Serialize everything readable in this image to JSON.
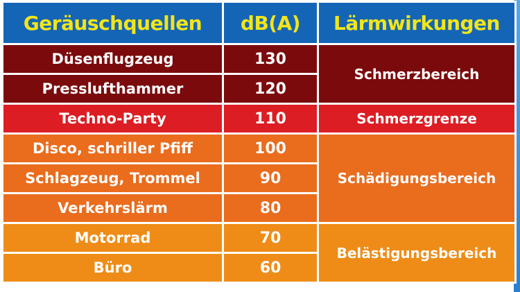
{
  "table": {
    "headers": [
      "Geräuschquellen",
      "dB(A)",
      "Lärmwirkungen"
    ],
    "rows": [
      {
        "source": "Düsenflugzeug",
        "db": "130"
      },
      {
        "source": "Presslufthammer",
        "db": "120"
      },
      {
        "source": "Techno-Party",
        "db": "110"
      },
      {
        "source": "Disco, schriller Pfiff",
        "db": "100"
      },
      {
        "source": "Schlagzeug, Trommel",
        "db": "90"
      },
      {
        "source": "Verkehrslärm",
        "db": "80"
      },
      {
        "source": "Motorrad",
        "db": "70"
      },
      {
        "source": "Büro",
        "db": "60"
      }
    ],
    "effects": [
      "Schmerzbereich",
      "Schmerzgrenze",
      "Schädigungsbereich",
      "Belästigungsbereich"
    ]
  },
  "colors": {
    "header": "#1565b6",
    "header_text": "#f2e51a",
    "schmerzbereich": "#7b0a0c",
    "schmerzgrenze": "#dc1d23",
    "schaedigungsbereich": "#ea6c1d",
    "belaestigungsbereich": "#ef8c17"
  }
}
